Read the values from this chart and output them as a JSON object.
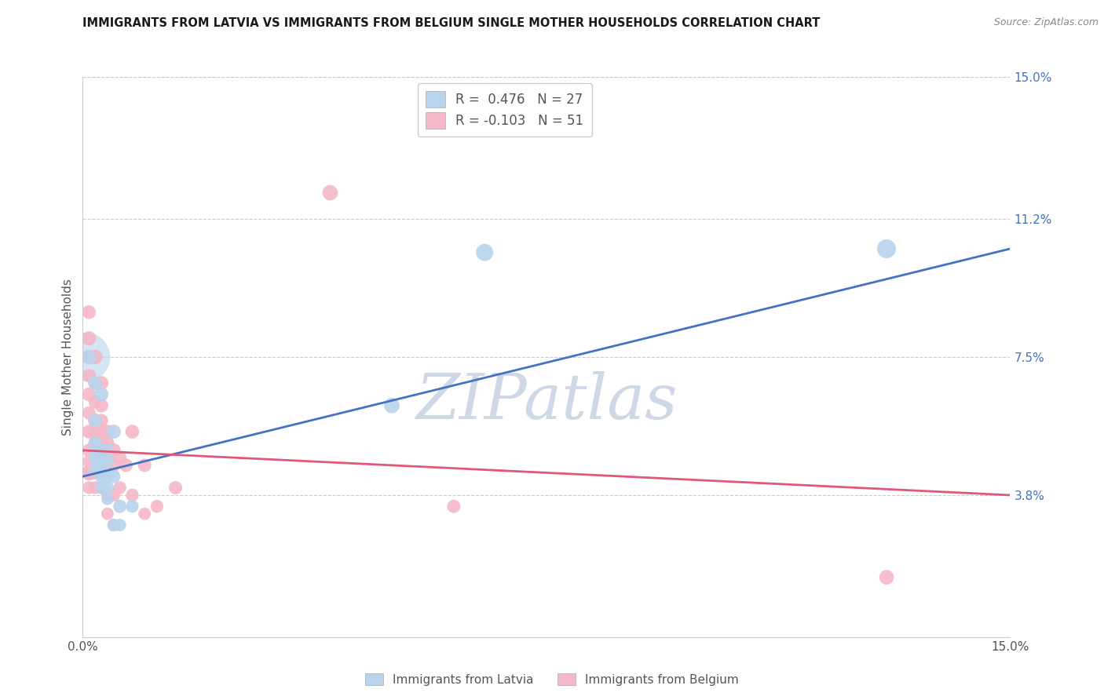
{
  "title": "IMMIGRANTS FROM LATVIA VS IMMIGRANTS FROM BELGIUM SINGLE MOTHER HOUSEHOLDS CORRELATION CHART",
  "source": "Source: ZipAtlas.com",
  "ylabel": "Single Mother Households",
  "xlim": [
    0.0,
    0.15
  ],
  "ylim": [
    0.0,
    0.15
  ],
  "ytick_labels_right": [
    "15.0%",
    "11.2%",
    "7.5%",
    "3.8%"
  ],
  "ytick_positions_right": [
    0.15,
    0.112,
    0.075,
    0.038
  ],
  "legend_entries": [
    {
      "label": "R =  0.476   N = 27",
      "color": "#b8d4ed"
    },
    {
      "label": "R = -0.103   N = 51",
      "color": "#f4b8c8"
    }
  ],
  "bottom_legend": [
    {
      "label": "Immigrants from Latvia",
      "color": "#b8d4ed"
    },
    {
      "label": "Immigrants from Belgium",
      "color": "#f4b8c8"
    }
  ],
  "latvia_color": "#b8d4ed",
  "latvia_line_color": "#4472C4",
  "belgium_color": "#f4b8c8",
  "belgium_line_color": "#e05878",
  "watermark": "ZIPatlas",
  "watermark_color": "#d0d8e8",
  "background_color": "#ffffff",
  "grid_color": "#cccccc",
  "latvia_line_x0": 0.0,
  "latvia_line_y0": 0.043,
  "latvia_line_x1": 0.15,
  "latvia_line_y1": 0.104,
  "belgium_line_x0": 0.0,
  "belgium_line_y0": 0.05,
  "belgium_line_x1": 0.15,
  "belgium_line_y1": 0.038,
  "latvia_points": [
    [
      0.001,
      0.075
    ],
    [
      0.002,
      0.068
    ],
    [
      0.002,
      0.058
    ],
    [
      0.002,
      0.052
    ],
    [
      0.002,
      0.048
    ],
    [
      0.002,
      0.045
    ],
    [
      0.003,
      0.065
    ],
    [
      0.003,
      0.05
    ],
    [
      0.003,
      0.048
    ],
    [
      0.003,
      0.047
    ],
    [
      0.003,
      0.044
    ],
    [
      0.003,
      0.043
    ],
    [
      0.003,
      0.04
    ],
    [
      0.004,
      0.05
    ],
    [
      0.004,
      0.047
    ],
    [
      0.004,
      0.043
    ],
    [
      0.004,
      0.04
    ],
    [
      0.004,
      0.037
    ],
    [
      0.005,
      0.055
    ],
    [
      0.005,
      0.043
    ],
    [
      0.005,
      0.03
    ],
    [
      0.006,
      0.035
    ],
    [
      0.006,
      0.03
    ],
    [
      0.008,
      0.035
    ],
    [
      0.05,
      0.062
    ],
    [
      0.065,
      0.103
    ],
    [
      0.13,
      0.104
    ]
  ],
  "latvia_sizes": [
    180,
    160,
    150,
    160,
    150,
    140,
    170,
    160,
    150,
    150,
    140,
    140,
    130,
    160,
    150,
    150,
    140,
    130,
    170,
    150,
    140,
    150,
    130,
    140,
    200,
    250,
    300
  ],
  "belgium_points": [
    [
      0.001,
      0.087
    ],
    [
      0.001,
      0.08
    ],
    [
      0.001,
      0.075
    ],
    [
      0.001,
      0.07
    ],
    [
      0.001,
      0.065
    ],
    [
      0.001,
      0.06
    ],
    [
      0.001,
      0.055
    ],
    [
      0.001,
      0.05
    ],
    [
      0.001,
      0.047
    ],
    [
      0.001,
      0.044
    ],
    [
      0.001,
      0.04
    ],
    [
      0.002,
      0.075
    ],
    [
      0.002,
      0.068
    ],
    [
      0.002,
      0.063
    ],
    [
      0.002,
      0.058
    ],
    [
      0.002,
      0.055
    ],
    [
      0.002,
      0.052
    ],
    [
      0.002,
      0.048
    ],
    [
      0.002,
      0.044
    ],
    [
      0.002,
      0.04
    ],
    [
      0.003,
      0.068
    ],
    [
      0.003,
      0.062
    ],
    [
      0.003,
      0.058
    ],
    [
      0.003,
      0.055
    ],
    [
      0.003,
      0.052
    ],
    [
      0.003,
      0.048
    ],
    [
      0.003,
      0.044
    ],
    [
      0.003,
      0.04
    ],
    [
      0.004,
      0.055
    ],
    [
      0.004,
      0.052
    ],
    [
      0.004,
      0.048
    ],
    [
      0.004,
      0.044
    ],
    [
      0.004,
      0.038
    ],
    [
      0.004,
      0.033
    ],
    [
      0.005,
      0.05
    ],
    [
      0.005,
      0.046
    ],
    [
      0.005,
      0.038
    ],
    [
      0.005,
      0.03
    ],
    [
      0.006,
      0.048
    ],
    [
      0.006,
      0.04
    ],
    [
      0.007,
      0.046
    ],
    [
      0.008,
      0.055
    ],
    [
      0.008,
      0.038
    ],
    [
      0.01,
      0.046
    ],
    [
      0.01,
      0.033
    ],
    [
      0.012,
      0.035
    ],
    [
      0.015,
      0.04
    ],
    [
      0.04,
      0.119
    ],
    [
      0.06,
      0.035
    ],
    [
      0.13,
      0.016
    ],
    [
      0.001,
      0.044
    ]
  ],
  "belgium_sizes": [
    160,
    170,
    160,
    150,
    160,
    150,
    160,
    150,
    140,
    150,
    140,
    180,
    160,
    150,
    170,
    160,
    150,
    160,
    150,
    140,
    170,
    160,
    150,
    160,
    150,
    160,
    150,
    140,
    160,
    150,
    160,
    150,
    140,
    130,
    160,
    150,
    140,
    130,
    150,
    140,
    150,
    160,
    140,
    150,
    130,
    140,
    150,
    200,
    150,
    180,
    200
  ]
}
